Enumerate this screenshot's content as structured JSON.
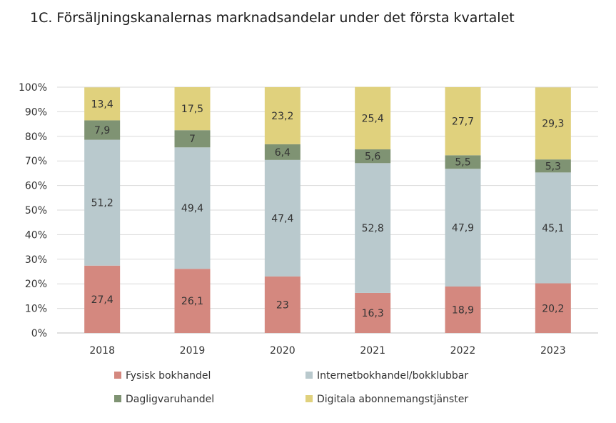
{
  "chart_data": {
    "type": "bar",
    "stacked": true,
    "title": "1C. Försäljningskanalernas marknadsandelar under det första kvartalet",
    "categories": [
      "2018",
      "2019",
      "2020",
      "2021",
      "2022",
      "2023"
    ],
    "y_ticks": [
      "0%",
      "10%",
      "20%",
      "30%",
      "40%",
      "50%",
      "60%",
      "70%",
      "80%",
      "90%",
      "100%"
    ],
    "ylim": [
      0,
      100
    ],
    "grid": true,
    "legend_position": "bottom",
    "series": [
      {
        "name": "Fysisk bokhandel",
        "color": "#d4887f",
        "values": [
          27.4,
          26.1,
          23,
          16.3,
          18.9,
          20.2
        ],
        "labels": [
          "27,4",
          "26,1",
          "23",
          "16,3",
          "18,9",
          "20,2"
        ]
      },
      {
        "name": "Internetbokhandel/bokklubbar",
        "color": "#b9c9cd",
        "values": [
          51.2,
          49.4,
          47.4,
          52.8,
          47.9,
          45.1
        ],
        "labels": [
          "51,2",
          "49,4",
          "47,4",
          "52,8",
          "47,9",
          "45,1"
        ]
      },
      {
        "name": "Dagligvaruhandel",
        "color": "#7f9373",
        "values": [
          7.9,
          7,
          6.4,
          5.6,
          5.5,
          5.3
        ],
        "labels": [
          "7,9",
          "7",
          "6,4",
          "5,6",
          "5,5",
          "5,3"
        ]
      },
      {
        "name": "Digitala abonnemangstjänster",
        "color": "#e0d17d",
        "values": [
          13.4,
          17.5,
          23.2,
          25.4,
          27.7,
          29.3
        ],
        "labels": [
          "13,4",
          "17,5",
          "23,2",
          "25,4",
          "27,7",
          "29,3"
        ]
      }
    ]
  }
}
